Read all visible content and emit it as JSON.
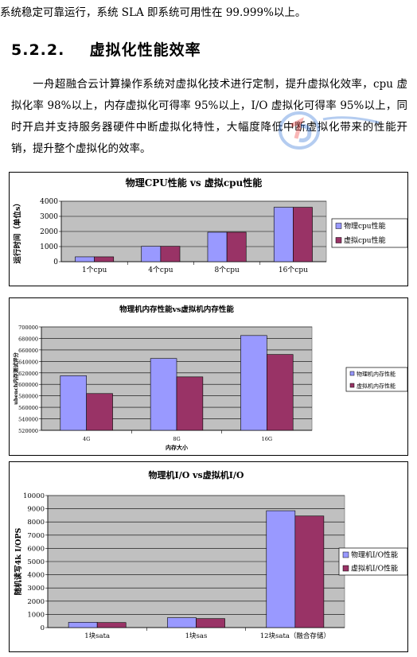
{
  "top_line": "系统稳定可靠运行，系统 SLA 即系统可用性在 99.999%以上。",
  "section": {
    "number": "5.2.2.",
    "title": "虚拟化性能效率"
  },
  "paragraph": "一舟超融合云计算操作系统对虚拟化技术进行定制，提升虚拟化效率，cpu 虚拟化率 98%以上，内存虚拟化可得率 95%以上，I/O 虚拟化可得率 95%以上，同时开启并支持服务器硬件中断虚拟化特性，大幅度降低中断虚拟化带来的性能开销，提升整个虚拟化的效率。",
  "colors": {
    "physical": "#9999FF",
    "virtual": "#993366",
    "plot_bg": "#C0C0C0"
  },
  "chart_data": [
    {
      "type": "bar",
      "title": "物理CPU性能 vs 虚拟cpu性能",
      "ylabel": "运行时间（单位s）",
      "xlabel": "",
      "categories": [
        "1个cpu",
        "4个cpu",
        "8个cpu",
        "16个cpu"
      ],
      "ylim": [
        0,
        4000
      ],
      "yticks": [
        "0",
        "1000",
        "2000",
        "3000",
        "4000"
      ],
      "series": [
        {
          "name": "物理cpu性能",
          "values": [
            320,
            1020,
            1950,
            3600
          ]
        },
        {
          "name": "虚拟cpu性能",
          "values": [
            320,
            1020,
            1950,
            3600
          ]
        }
      ],
      "grid": true,
      "legend": "right"
    },
    {
      "type": "bar",
      "title": "物理机内存性能vs虚拟机内存性能",
      "ylabel": "ubench内存测试评分",
      "xlabel": "内存大小",
      "categories": [
        "4G",
        "8G",
        "16G"
      ],
      "ylim": [
        520000,
        700000
      ],
      "yticks": [
        "520000",
        "540000",
        "560000",
        "580000",
        "600000",
        "620000",
        "640000",
        "660000",
        "680000",
        "700000"
      ],
      "series": [
        {
          "name": "物理机内存性能",
          "values": [
            615000,
            645000,
            685000
          ]
        },
        {
          "name": "虚拟机内存性能",
          "values": [
            584000,
            613000,
            652000
          ]
        }
      ],
      "grid": true,
      "legend": "right"
    },
    {
      "type": "bar",
      "title": "物理机I/O vs虚拟机I/O",
      "ylabel": "随机读写4k I/OPS",
      "xlabel": "",
      "categories": [
        "1块sata",
        "1块sas",
        "12块sata（融合存储）"
      ],
      "ylim": [
        0,
        10000
      ],
      "yticks": [
        "0",
        "1000",
        "2000",
        "3000",
        "4000",
        "5000",
        "6000",
        "7000",
        "8000",
        "9000",
        "10000"
      ],
      "series": [
        {
          "name": "物理机I/O性能",
          "values": [
            400,
            750,
            8850
          ]
        },
        {
          "name": "虚拟机I/O性能",
          "values": [
            380,
            680,
            8450
          ]
        }
      ],
      "grid": true,
      "legend": "right"
    }
  ]
}
